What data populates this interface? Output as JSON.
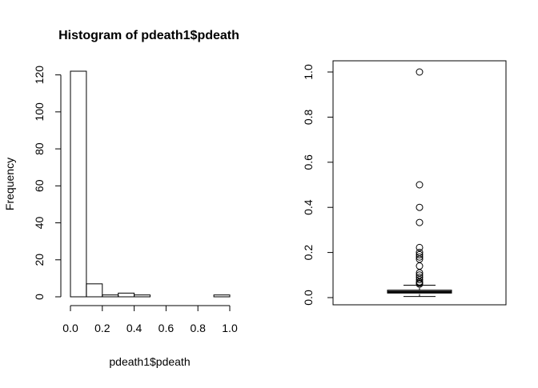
{
  "chart_data": [
    {
      "type": "bar",
      "subtype": "histogram",
      "title": "Histogram of pdeath1$pdeath",
      "xlabel": "pdeath1$pdeath",
      "ylabel": "Frequency",
      "bin_edges": [
        0.0,
        0.1,
        0.2,
        0.3,
        0.4,
        0.5,
        0.6,
        0.7,
        0.8,
        0.9,
        1.0
      ],
      "values": [
        122,
        7,
        1,
        2,
        1,
        0,
        0,
        0,
        0,
        1
      ],
      "xlim": [
        0.0,
        1.0
      ],
      "ylim": [
        0,
        122
      ],
      "x_ticks": [
        0.0,
        0.2,
        0.4,
        0.6,
        0.8,
        1.0
      ],
      "x_tick_labels": [
        "0.0",
        "0.2",
        "0.4",
        "0.6",
        "0.8",
        "1.0"
      ],
      "y_ticks": [
        0,
        20,
        40,
        60,
        80,
        100,
        120
      ],
      "y_tick_labels": [
        "0",
        "20",
        "40",
        "60",
        "80",
        "100",
        "120"
      ],
      "grid": false
    },
    {
      "type": "boxplot",
      "title": "",
      "xlabel": "",
      "ylabel": "",
      "ylim": [
        0.0,
        1.0
      ],
      "y_ticks": [
        0.0,
        0.2,
        0.4,
        0.6,
        0.8,
        1.0
      ],
      "y_tick_labels": [
        "0.0",
        "0.2",
        "0.4",
        "0.6",
        "0.8",
        "1.0"
      ],
      "stats": {
        "min": 0.005,
        "q1": 0.02,
        "median": 0.025,
        "q3": 0.033,
        "max": 0.055
      },
      "outliers": [
        1.0,
        0.5,
        0.4,
        0.333,
        0.222,
        0.2,
        0.19,
        0.18,
        0.17,
        0.14,
        0.11,
        0.1,
        0.09,
        0.08,
        0.07,
        0.065,
        0.06
      ],
      "grid": false
    }
  ]
}
